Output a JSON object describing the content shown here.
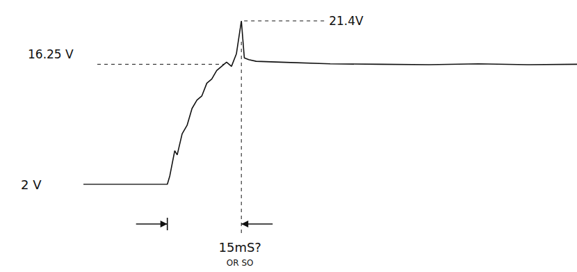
{
  "chart_data": {
    "type": "line",
    "x": [
      0,
      17,
      17.5,
      18.5,
      19,
      20,
      21,
      22,
      23,
      24,
      25,
      26,
      27,
      28,
      29,
      30,
      31,
      32,
      32.6,
      33.5,
      35,
      40,
      50,
      60,
      70,
      80,
      90,
      100
    ],
    "values": [
      2,
      2,
      3,
      6,
      5.5,
      8,
      9,
      11,
      12,
      12.5,
      14,
      14.5,
      15.5,
      16,
      16.5,
      16,
      17.5,
      21.4,
      17,
      16.8,
      16.6,
      16.5,
      16.3,
      16.25,
      16.2,
      16.3,
      16.2,
      16.25
    ],
    "color": "#111111",
    "grid": false,
    "tick_labels": false,
    "annotations": [
      {
        "text": "21.4V",
        "value": 21.4
      },
      {
        "text": "16.25 V",
        "value": 16.25
      },
      {
        "text": "2 V",
        "value": 2
      }
    ],
    "span": {
      "from": 17,
      "to": 32,
      "label": "15mS?",
      "note": "OR SO"
    }
  }
}
